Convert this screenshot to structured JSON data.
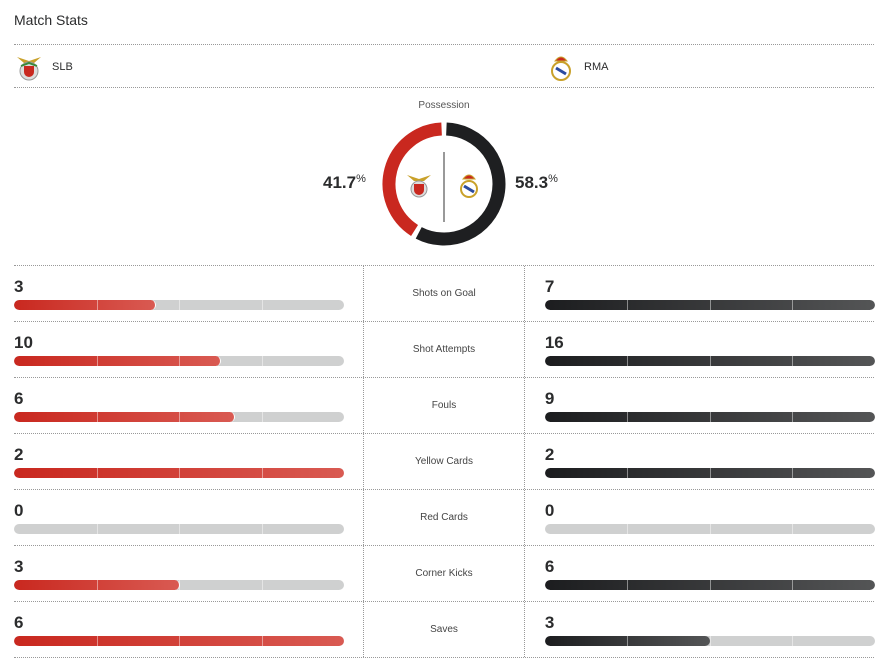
{
  "header": {
    "title": "Match Stats"
  },
  "teams": {
    "home": {
      "abbr": "SLB",
      "color": "#c9281f"
    },
    "away": {
      "abbr": "RMA",
      "color": "#1e1f21"
    }
  },
  "possession": {
    "label": "Possession",
    "home_pct": 41.7,
    "away_pct": 58.3,
    "home_text": "41.7",
    "away_text": "58.3",
    "unit": "%"
  },
  "stats": [
    {
      "label": "Shots on Goal",
      "home": 3,
      "away": 7
    },
    {
      "label": "Shot Attempts",
      "home": 10,
      "away": 16
    },
    {
      "label": "Fouls",
      "home": 6,
      "away": 9
    },
    {
      "label": "Yellow Cards",
      "home": 2,
      "away": 2
    },
    {
      "label": "Red Cards",
      "home": 0,
      "away": 0
    },
    {
      "label": "Corner Kicks",
      "home": 3,
      "away": 6
    },
    {
      "label": "Saves",
      "home": 6,
      "away": 3
    }
  ]
}
